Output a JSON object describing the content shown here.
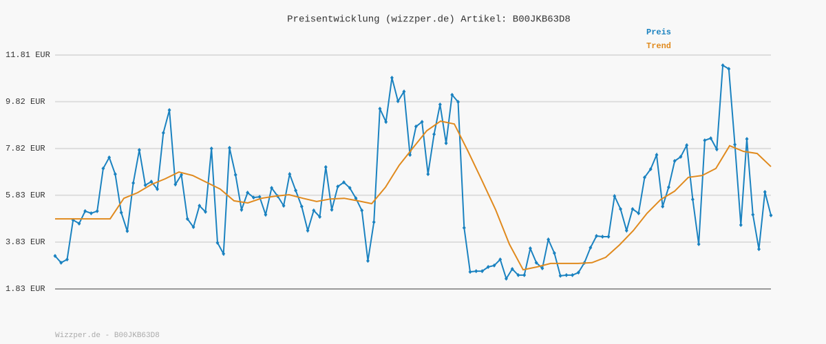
{
  "chart_data": {
    "type": "line",
    "title": "Preisentwicklung (wizzper.de) Artikel: B00JKB63D8",
    "footer": "Wizzper.de - B00JKB63D8",
    "ylim": [
      1.83,
      11.81
    ],
    "yticks": [
      {
        "value": 1.83,
        "label": "1.83 EUR"
      },
      {
        "value": 3.83,
        "label": "3.83 EUR"
      },
      {
        "value": 5.83,
        "label": "5.83 EUR"
      },
      {
        "value": 7.82,
        "label": "7.82 EUR"
      },
      {
        "value": 9.82,
        "label": "9.82 EUR"
      },
      {
        "value": 11.81,
        "label": "11.81 EUR"
      }
    ],
    "grid": true,
    "legend": "top-right",
    "series": [
      {
        "name": "Preis",
        "color": "#1a82c0",
        "markers": true,
        "values": [
          3.24,
          2.95,
          3.09,
          4.77,
          4.62,
          5.15,
          5.06,
          5.15,
          6.97,
          7.44,
          6.73,
          5.09,
          4.3,
          6.35,
          7.76,
          6.26,
          6.41,
          6.09,
          8.49,
          9.46,
          6.29,
          6.7,
          4.82,
          4.47,
          5.38,
          5.12,
          7.82,
          3.8,
          3.33,
          7.85,
          6.7,
          5.21,
          5.94,
          5.73,
          5.76,
          5.0,
          6.14,
          5.79,
          5.38,
          6.73,
          6.03,
          5.35,
          4.32,
          5.18,
          4.91,
          7.03,
          5.21,
          6.2,
          6.38,
          6.14,
          5.7,
          5.18,
          3.03,
          4.68,
          9.52,
          8.96,
          10.84,
          9.84,
          10.25,
          7.55,
          8.76,
          8.96,
          6.73,
          8.43,
          9.7,
          8.05,
          10.11,
          9.81,
          4.44,
          2.56,
          2.59,
          2.59,
          2.77,
          2.83,
          3.09,
          2.27,
          2.68,
          2.42,
          2.42,
          3.56,
          2.95,
          2.71,
          3.94,
          3.36,
          2.39,
          2.42,
          2.42,
          2.53,
          2.95,
          3.59,
          4.09,
          4.06,
          4.06,
          5.79,
          5.24,
          4.32,
          5.24,
          5.06,
          6.59,
          6.94,
          7.55,
          5.35,
          6.17,
          7.29,
          7.47,
          7.96,
          5.65,
          3.74,
          8.17,
          8.26,
          7.79,
          11.37,
          11.22,
          7.99,
          4.56,
          8.23,
          5.0,
          3.53,
          5.97,
          4.97
        ]
      },
      {
        "name": "Trend",
        "color": "#e08a1e",
        "markers": false,
        "values": [
          4.82,
          4.82,
          4.82,
          4.82,
          4.82,
          5.7,
          5.94,
          6.29,
          6.53,
          6.82,
          6.67,
          6.38,
          6.09,
          5.59,
          5.5,
          5.7,
          5.79,
          5.85,
          5.7,
          5.56,
          5.67,
          5.7,
          5.59,
          5.47,
          6.17,
          7.11,
          7.85,
          8.58,
          8.99,
          8.87,
          7.7,
          6.47,
          5.21,
          3.74,
          2.65,
          2.77,
          2.92,
          2.92,
          2.92,
          2.95,
          3.18,
          3.71,
          4.32,
          5.06,
          5.65,
          6.0,
          6.59,
          6.67,
          6.97,
          7.94,
          7.7,
          7.61,
          7.05
        ]
      }
    ]
  }
}
